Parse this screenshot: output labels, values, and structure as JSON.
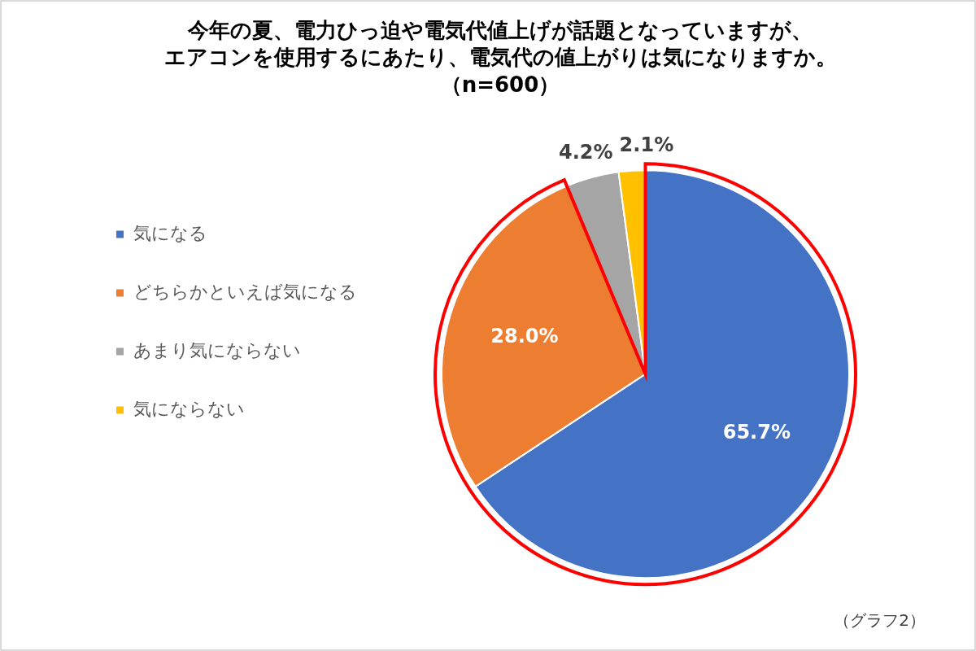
{
  "chart_data": {
    "type": "pie",
    "title": [
      "今年の夏、電力ひっ迫や電気代値上げが話題となっていますが、",
      "エアコンを使用するにあたり、電気代の値上がりは気になりますか。",
      "（n=600）"
    ],
    "categories": [
      "気になる",
      "どちらかといえば気になる",
      "あまり気にならない",
      "気にならない"
    ],
    "values": [
      65.7,
      28.0,
      4.2,
      2.1
    ],
    "value_labels": [
      "65.7%",
      "28.0%",
      "4.2%",
      "2.1%"
    ],
    "colors": [
      "#4472c4",
      "#ed7d31",
      "#a5a5a5",
      "#ffc000"
    ],
    "data_labels": true,
    "legend": "left",
    "annotation": "（グラフ2）"
  }
}
